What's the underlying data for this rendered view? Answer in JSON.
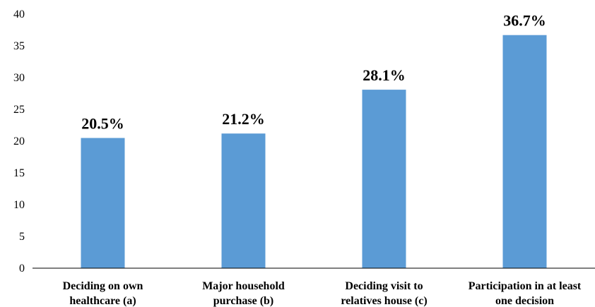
{
  "chart_data": {
    "type": "bar",
    "title": "",
    "xlabel": "",
    "ylabel": "",
    "ylim": [
      0,
      40
    ],
    "yticks": [
      0,
      5,
      10,
      15,
      20,
      25,
      30,
      35,
      40
    ],
    "grid": false,
    "legend": "none",
    "categories": [
      [
        "Deciding on own",
        "healthcare (a)"
      ],
      [
        "Major household",
        "purchase (b)"
      ],
      [
        "Deciding visit to",
        "relatives house (c)"
      ],
      [
        "Participation in at least",
        "one decision"
      ]
    ],
    "values": [
      20.5,
      21.2,
      28.1,
      36.7
    ],
    "data_labels": [
      "20.5%",
      "21.2%",
      "28.1%",
      "36.7%"
    ],
    "colors": {
      "bar": "#5b9bd5",
      "axis": "#000000",
      "text": "#000000"
    }
  }
}
